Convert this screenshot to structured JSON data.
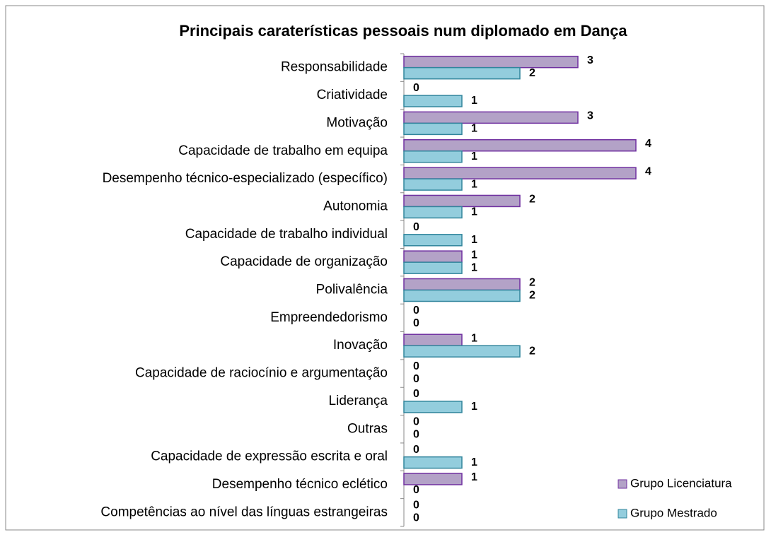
{
  "chart_data": {
    "type": "barh",
    "title": "Principais caraterísticas pessoais num diplomado em Dança",
    "categories": [
      "Responsabilidade",
      "Criatividade",
      "Motivação",
      "Capacidade de trabalho em equipa",
      "Desempenho técnico-especializado (específico)",
      "Autonomia",
      "Capacidade de trabalho individual",
      "Capacidade de organização",
      "Polivalência",
      "Empreendedorismo",
      "Inovação",
      "Capacidade de raciocínio e argumentação",
      "Liderança",
      "Outras",
      "Capacidade de expressão escrita e oral",
      "Desempenho técnico eclético",
      "Competências ao nível das línguas estrangeiras"
    ],
    "series": [
      {
        "name": "Grupo Licenciatura",
        "color": "#b3a2c7",
        "stroke": "#7030a0",
        "values": [
          3,
          0,
          3,
          4,
          4,
          2,
          0,
          1,
          2,
          0,
          1,
          0,
          0,
          0,
          0,
          1,
          0
        ]
      },
      {
        "name": "Grupo Mestrado",
        "color": "#93cddd",
        "stroke": "#31859c",
        "values": [
          2,
          1,
          1,
          1,
          1,
          1,
          1,
          1,
          2,
          0,
          2,
          0,
          1,
          0,
          1,
          0,
          0
        ]
      }
    ],
    "legend": "right-bottom"
  }
}
